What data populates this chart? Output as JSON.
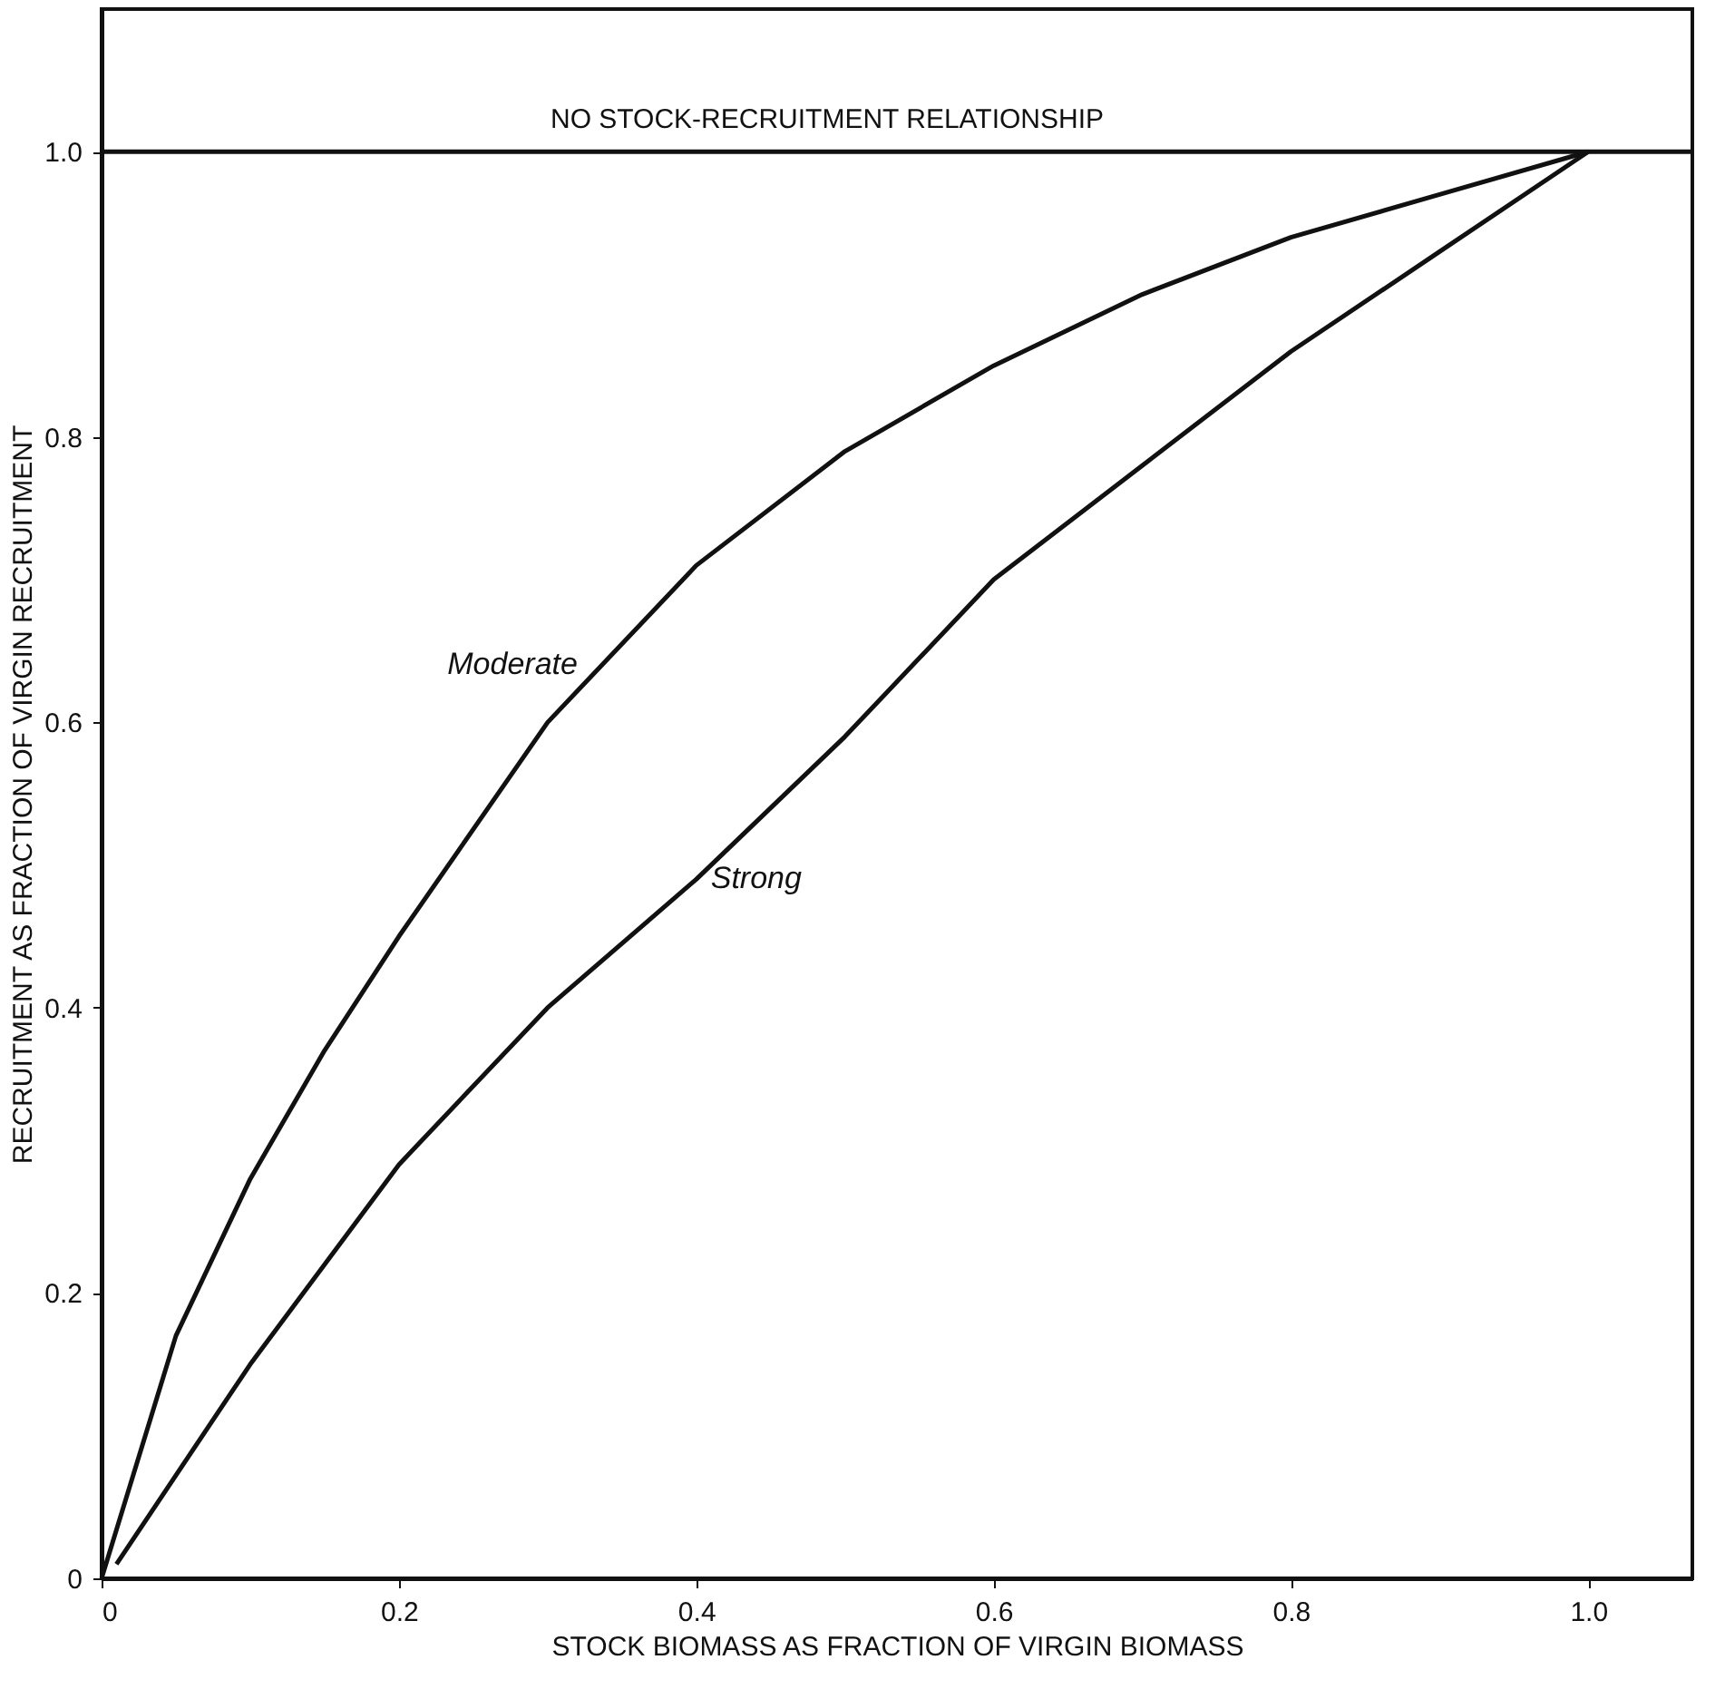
{
  "chart_data": {
    "type": "line",
    "xlabel": "STOCK BIOMASS AS FRACTION OF VIRGIN BIOMASS",
    "ylabel": "RECRUITMENT AS FRACTION OF VIRGIN RECRUITMENT",
    "series": [
      {
        "color": "#111111",
        "x": [
          0,
          0.05,
          0.1,
          0.15,
          0.2,
          0.3,
          0.4,
          0.5,
          0.6,
          0.7,
          0.8,
          0.9,
          1.0
        ],
        "values": [
          0,
          0.17,
          0.28,
          0.37,
          0.45,
          0.6,
          0.71,
          0.79,
          0.85,
          0.9,
          0.94,
          0.97,
          1.0
        ]
      },
      {
        "color": "#111111",
        "x": [
          0.01,
          0.1,
          0.2,
          0.3,
          0.4,
          0.5,
          0.6,
          0.7,
          0.8,
          0.9,
          1.0
        ],
        "values": [
          0.01,
          0.15,
          0.29,
          0.4,
          0.49,
          0.59,
          0.7,
          0.78,
          0.86,
          0.93,
          1.0
        ]
      }
    ],
    "ref_lines": [
      {
        "axis": "y",
        "value": 1.0,
        "label": "NO STOCK-RECRUITMENT RELATIONSHIP",
        "color": "#111111"
      }
    ],
    "annotations": [
      {
        "text": "Moderate",
        "x": 0.33,
        "y": 0.64
      },
      {
        "text": "Strong",
        "x": 0.4,
        "y": 0.49
      }
    ],
    "xlim": [
      0,
      1.07
    ],
    "ylim": [
      0,
      1.1
    ],
    "xticks": [
      0,
      0.2,
      0.4,
      0.6,
      0.8,
      {
        "value": 1.0,
        "label": "1.0"
      }
    ],
    "yticks": [
      0,
      0.2,
      0.4,
      0.6,
      0.8,
      {
        "value": 1.0,
        "label": "1.0"
      }
    ],
    "grid": false,
    "marker": "none",
    "line_style": "solid"
  }
}
